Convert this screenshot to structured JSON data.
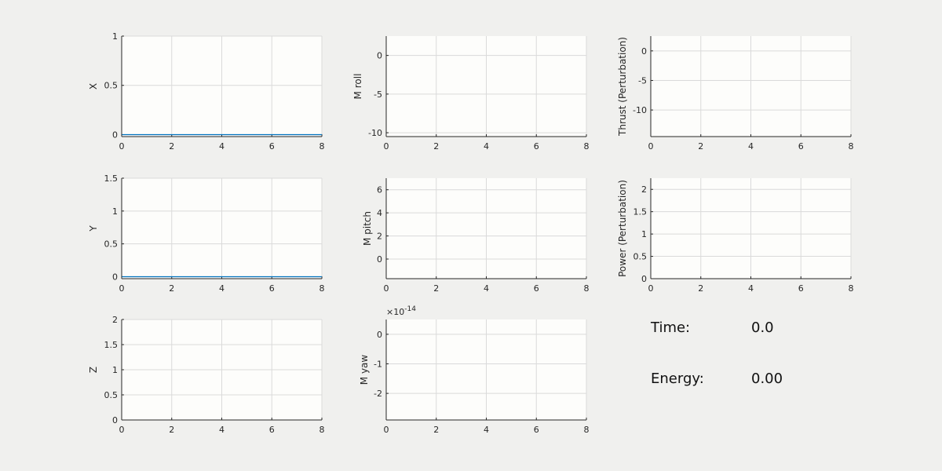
{
  "figure": {
    "background": "#f0f0ee"
  },
  "style": {
    "plot_bg": "#fdfdfb",
    "grid": "#dadada",
    "axis": "#262626",
    "text": "#262626"
  },
  "readouts": {
    "time_label": "Time:",
    "time_value": "0.0",
    "energy_label": "Energy:",
    "energy_value": "0.00"
  },
  "chart_data": [
    {
      "id": "x",
      "type": "line",
      "ylabel": "X",
      "xlim": [
        0,
        8
      ],
      "ylim": [
        -0.02,
        1
      ],
      "xticks": [
        "0",
        "2",
        "4",
        "6",
        "8"
      ],
      "yticks": [
        0,
        0.5,
        1
      ],
      "ytick_labels": [
        "0",
        "0.5",
        "1"
      ],
      "grid": true,
      "series": [
        {
          "x": [
            0,
            8
          ],
          "values": [
            0,
            0
          ]
        }
      ]
    },
    {
      "id": "mroll",
      "type": "line",
      "ylabel": "M roll",
      "xlim": [
        0,
        8
      ],
      "ylim": [
        -10.5,
        2.5
      ],
      "xticks": [
        "0",
        "2",
        "4",
        "6",
        "8"
      ],
      "yticks": [
        0,
        -5,
        -10
      ],
      "ytick_labels": [
        "0",
        "-5",
        "-10"
      ],
      "grid": true,
      "series": []
    },
    {
      "id": "thrust",
      "type": "line",
      "ylabel": "Thrust (Perturbation)",
      "xlim": [
        0,
        8
      ],
      "ylim": [
        -14.5,
        2.5
      ],
      "xticks": [
        "0",
        "2",
        "4",
        "6",
        "8"
      ],
      "yticks": [
        0,
        -5,
        -10
      ],
      "ytick_labels": [
        "0",
        "-5",
        "-10"
      ],
      "grid": true,
      "series": []
    },
    {
      "id": "y",
      "type": "line",
      "ylabel": "Y",
      "xlim": [
        0,
        8
      ],
      "ylim": [
        -0.03,
        1.5
      ],
      "xticks": [
        "0",
        "2",
        "4",
        "6",
        "8"
      ],
      "yticks": [
        0,
        0.5,
        1,
        1.5
      ],
      "ytick_labels": [
        "0",
        "0.5",
        "1",
        "1.5"
      ],
      "grid": true,
      "series": [
        {
          "x": [
            0,
            8
          ],
          "values": [
            0,
            0
          ]
        }
      ]
    },
    {
      "id": "mpitch",
      "type": "line",
      "ylabel": "M pitch",
      "xlim": [
        0,
        8
      ],
      "ylim": [
        -1.7,
        7
      ],
      "xticks": [
        "0",
        "2",
        "4",
        "6",
        "8"
      ],
      "yticks": [
        0,
        2,
        4,
        6
      ],
      "ytick_labels": [
        "0",
        "2",
        "4",
        "6"
      ],
      "grid": true,
      "series": []
    },
    {
      "id": "power",
      "type": "line",
      "ylabel": "Power (Perturbation)",
      "xlim": [
        0,
        8
      ],
      "ylim": [
        0,
        2.25
      ],
      "xticks": [
        "0",
        "2",
        "4",
        "6",
        "8"
      ],
      "yticks": [
        0,
        0.5,
        1,
        1.5,
        2
      ],
      "ytick_labels": [
        "0",
        "0.5",
        "1",
        "1.5",
        "2"
      ],
      "grid": true,
      "series": []
    },
    {
      "id": "z",
      "type": "line",
      "ylabel": "Z",
      "xlim": [
        0,
        8
      ],
      "ylim": [
        0,
        2
      ],
      "xticks": [
        "0",
        "2",
        "4",
        "6",
        "8"
      ],
      "yticks": [
        0,
        0.5,
        1,
        1.5,
        2
      ],
      "ytick_labels": [
        "0",
        "0.5",
        "1",
        "1.5",
        "2"
      ],
      "grid": true,
      "series": []
    },
    {
      "id": "myaw",
      "type": "line",
      "ylabel": "M yaw",
      "xlim": [
        0,
        8
      ],
      "ylim": [
        -2.9,
        0.5
      ],
      "xticks": [
        "0",
        "2",
        "4",
        "6",
        "8"
      ],
      "yticks": [
        0,
        -1,
        -2
      ],
      "ytick_labels": [
        "0",
        "-1",
        "-2"
      ],
      "exponent_base": "×10",
      "exponent_power": "-14",
      "grid": true,
      "series": []
    }
  ]
}
